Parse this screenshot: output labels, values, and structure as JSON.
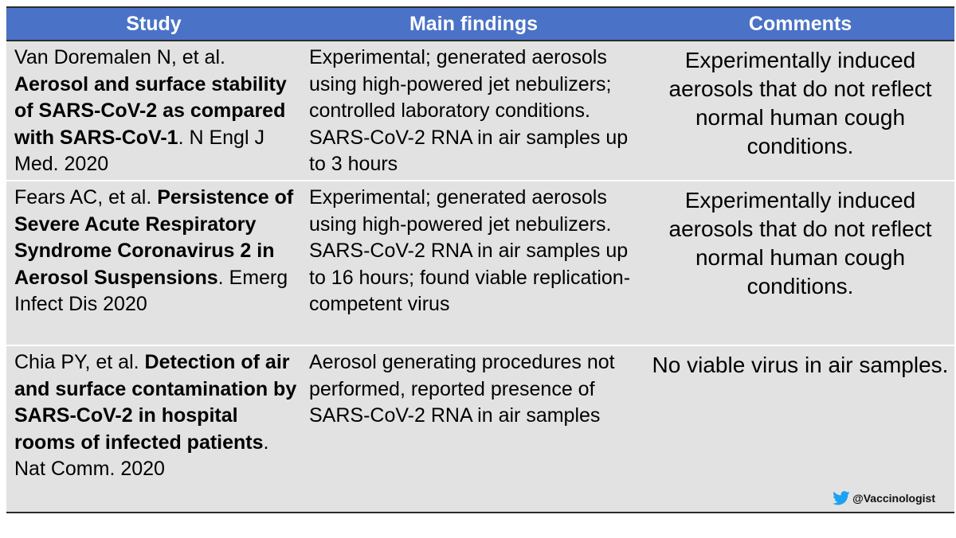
{
  "headers": {
    "study": "Study",
    "findings": "Main findings",
    "comments": "Comments"
  },
  "rows": [
    {
      "study_authors": "Van Doremalen N, et al. ",
      "study_title": "Aerosol and surface stability of SARS-CoV-2 as compared with SARS-CoV-1",
      "study_source": ". N Engl J Med. 2020",
      "findings": "Experimental; generated aerosols using high-powered jet nebulizers; controlled laboratory conditions. SARS-CoV-2 RNA in air samples up to 3 hours",
      "comments": "Experimentally induced aerosols that do not reflect normal human cough conditions."
    },
    {
      "study_authors": "Fears AC, et al. ",
      "study_title": "Persistence of Severe Acute Respiratory Syndrome Coronavirus 2 in Aerosol Suspensions",
      "study_source": ". Emerg Infect Dis 2020",
      "findings": "Experimental; generated aerosols using high-powered jet nebulizers. SARS-CoV-2 RNA in air samples up to 16 hours; found viable replication-competent virus",
      "comments": "Experimentally induced aerosols that do not reflect normal human cough conditions."
    },
    {
      "study_authors": "Chia PY, et al. ",
      "study_title": "Detection of air and surface contamination by SARS-CoV-2 in hospital rooms of infected patients",
      "study_source": ". Nat Comm. 2020",
      "findings": "Aerosol generating procedures not performed, reported presence of SARS-CoV-2 RNA in air samples",
      "comments": "No viable virus in air samples."
    }
  ],
  "credit": {
    "icon": "twitter-bird-icon",
    "handle": "@Vaccinologist"
  },
  "colors": {
    "header_bg": "#4a72c6",
    "row_bg": "#e2e2e2",
    "twitter_blue": "#1da1f2"
  }
}
